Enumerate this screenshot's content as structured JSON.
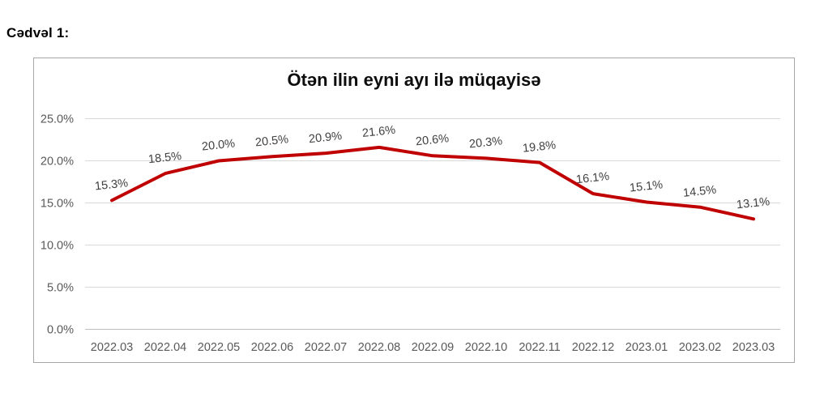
{
  "page": {
    "heading": "Cədvəl 1:"
  },
  "chart_data": {
    "type": "line",
    "title": "Ötən ilin eyni ayı ilə müqayisə",
    "categories": [
      "2022.03",
      "2022.04",
      "2022.05",
      "2022.06",
      "2022.07",
      "2022.08",
      "2022.09",
      "2022.10",
      "2022.11",
      "2022.12",
      "2023.01",
      "2023.02",
      "2023.03"
    ],
    "values": [
      15.3,
      18.5,
      20.0,
      20.5,
      20.9,
      21.6,
      20.6,
      20.3,
      19.8,
      16.1,
      15.1,
      14.5,
      13.1
    ],
    "data_labels": [
      "15.3%",
      "18.5%",
      "20.0%",
      "20.5%",
      "20.9%",
      "21.6%",
      "20.6%",
      "20.3%",
      "19.8%",
      "16.1%",
      "15.1%",
      "14.5%",
      "13.1%"
    ],
    "xlabel": "",
    "ylabel": "",
    "ylim": [
      0,
      25
    ],
    "ytick_step": 5,
    "ytick_labels": [
      "0.0%",
      "5.0%",
      "10.0%",
      "15.0%",
      "20.0%",
      "25.0%"
    ],
    "grid": true,
    "legend": "none",
    "colors": {
      "line": "#c00000",
      "gridline": "#d9d9d9",
      "axis_line": "#bfbfbf",
      "tick_text": "#595959",
      "data_label_text": "#404040",
      "frame_border": "#a6a6a6",
      "title_text": "#0d0d0d"
    }
  }
}
